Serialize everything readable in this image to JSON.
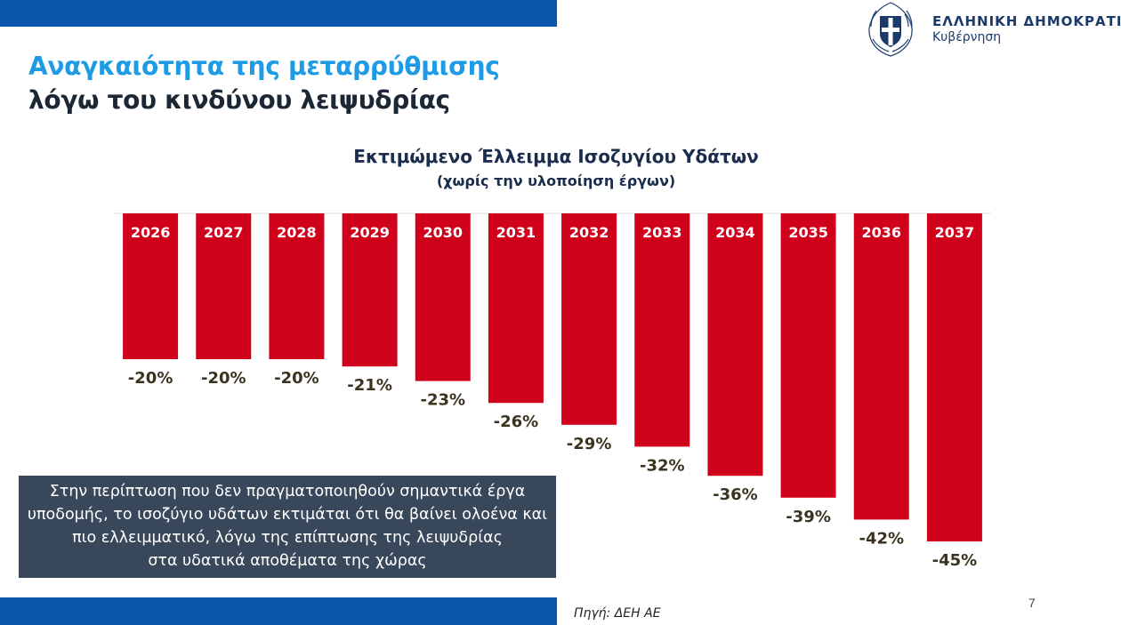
{
  "slide": {
    "title_line1": "Αναγκαιότητα της μεταρρύθμισης",
    "title_line2": "λόγω του κινδύνου λειψυδρίας",
    "government_name": "ΕΛΛΗΝΙΚΗ ΔΗΜΟΚΡΑΤΙΑ",
    "government_sub": "Κυβέρνηση",
    "note_lines": [
      "Στην περίπτωση που δεν πραγματοποιηθούν σημαντικά έργα",
      "υποδομής, το ισοζύγιο υδάτων εκτιμάται ότι θα βαίνει ολοένα και",
      "πιο ελλειμματικό, λόγω της επίπτωσης της λειψυδρίας",
      "στα υδατικά αποθέματα της χώρας"
    ],
    "source": "Πηγή: ΔΕΗ ΑΕ",
    "page_number": "7",
    "colors": {
      "accent_blue": "#0b56ad",
      "title_blue": "#1e9be4",
      "bar_red": "#d0021b",
      "note_bg": "#38475a"
    }
  },
  "chart_data": {
    "type": "bar",
    "title": "Εκτιμώμενο Έλλειμμα Ισοζυγίου Υδάτων",
    "subtitle": "(χωρίς την υλοποίηση έργων)",
    "categories": [
      "2026",
      "2027",
      "2028",
      "2029",
      "2030",
      "2031",
      "2032",
      "2033",
      "2034",
      "2035",
      "2036",
      "2037"
    ],
    "values": [
      -20,
      -20,
      -20,
      -21,
      -23,
      -26,
      -29,
      -32,
      -36,
      -39,
      -42,
      -45
    ],
    "data_labels": [
      "-20%",
      "-20%",
      "-20%",
      "-21%",
      "-23%",
      "-26%",
      "-29%",
      "-32%",
      "-36%",
      "-39%",
      "-42%",
      "-45%"
    ],
    "unit": "%",
    "ylim": [
      -45,
      0
    ],
    "grid": false,
    "bar_color": "#d0021b"
  }
}
